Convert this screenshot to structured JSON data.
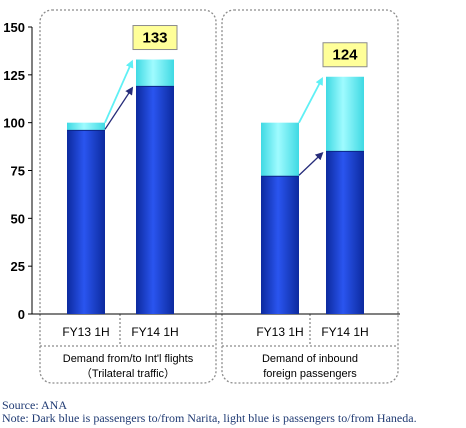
{
  "chart_data": {
    "type": "bar",
    "stacked": true,
    "categories": [
      "FY13 1H",
      "FY14 1H",
      "FY13 1H",
      "FY14 1H"
    ],
    "groups": [
      {
        "label_line1": "Demand from/to Int'l flights",
        "label_line2": "（Trilateral traffic）",
        "category_indices": [
          0,
          1
        ]
      },
      {
        "label_line1": "Demand of inbound",
        "label_line2": "foreign passengers",
        "category_indices": [
          2,
          3
        ]
      }
    ],
    "series": [
      {
        "color": "#1b3fd6",
        "values": [
          96,
          119,
          72,
          85
        ]
      },
      {
        "color": "#5ff0f5",
        "values": [
          4,
          14,
          28,
          39
        ]
      }
    ],
    "callouts": [
      "133",
      "124"
    ],
    "ylim": [
      0,
      150
    ],
    "yticks": [
      "0",
      "25",
      "50",
      "75",
      "100",
      "125",
      "150"
    ],
    "grid": false
  },
  "notes": {
    "source": "Source: ANA",
    "note": "Note: Dark blue is passengers to/from Narita, light blue is passengers to/from Haneda."
  }
}
